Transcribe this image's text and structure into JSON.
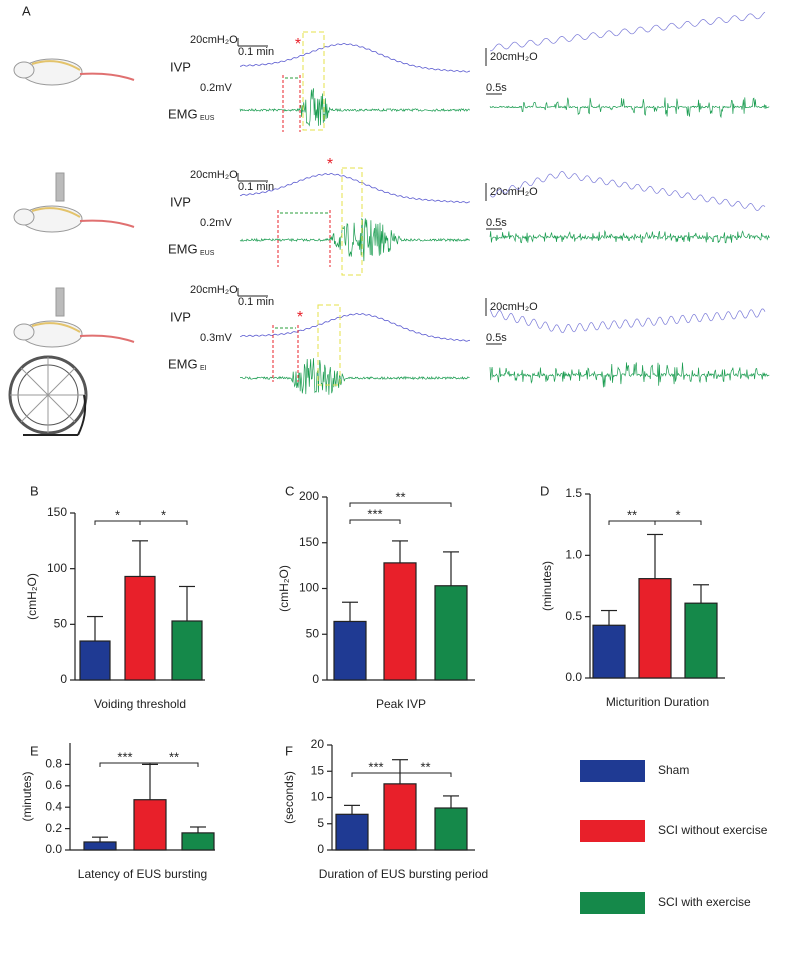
{
  "panel_a": {
    "label": "A",
    "rows": [
      {
        "ivp_scale": "20cmH₂O",
        "time_scale": "0.1 min",
        "ivp": "IVP",
        "emg_scale": "0.2mV",
        "emg": "EMG",
        "emg_sub": "EUS",
        "star": "*",
        "right_ivp_scale": "20cmH₂O",
        "right_time_scale": "0.5s"
      },
      {
        "ivp_scale": "20cmH₂O",
        "time_scale": "0.1 min",
        "ivp": "IVP",
        "emg_scale": "0.2mV",
        "emg": "EMG",
        "emg_sub": "EUS",
        "star": "*",
        "right_ivp_scale": "20cmH₂O",
        "right_time_scale": "0.5s"
      },
      {
        "ivp_scale": "20cmH₂O",
        "time_scale": "0.1 min",
        "ivp": "IVP",
        "emg_scale": "0.3mV",
        "emg": "EMG",
        "emg_sub": "EI",
        "star": "*",
        "right_ivp_scale": "20cmH₂O",
        "right_time_scale": "0.5s"
      }
    ]
  },
  "legend": [
    {
      "name": "Sham",
      "color": "#1f3a93"
    },
    {
      "name": "SCI without exercise",
      "color": "#e8202a"
    },
    {
      "name": "SCI with exercise",
      "color": "#15894a"
    }
  ],
  "chart_data": [
    {
      "type": "bar",
      "label": "B",
      "ylabel": "(cmH₂O)",
      "xlabel": "Voiding threshold",
      "values": [
        35,
        93,
        53
      ],
      "errors": [
        22,
        32,
        31
      ],
      "ylim": [
        0,
        150
      ],
      "yticks": [
        0,
        50,
        100,
        150
      ],
      "significance": [
        {
          "label": "*",
          "from": 0,
          "to": 1
        },
        {
          "label": "*",
          "from": 1,
          "to": 2
        }
      ]
    },
    {
      "type": "bar",
      "label": "C",
      "ylabel": "(cmH₂O)",
      "xlabel": "Peak IVP",
      "values": [
        64,
        128,
        103
      ],
      "errors": [
        21,
        24,
        37
      ],
      "ylim": [
        0,
        200
      ],
      "yticks": [
        0,
        50,
        100,
        150,
        200
      ],
      "significance": [
        {
          "label": "***",
          "from": 0,
          "to": 1
        },
        {
          "label": "**",
          "from": 0,
          "to": 2
        }
      ]
    },
    {
      "type": "bar",
      "label": "D",
      "ylabel": "(minutes)",
      "xlabel": "Micturition Duration",
      "values": [
        0.43,
        0.81,
        0.61
      ],
      "errors": [
        0.12,
        0.36,
        0.15
      ],
      "ylim": [
        0,
        1.5
      ],
      "yticks": [
        {
          "value": 0,
          "label": "0.0"
        },
        0.5,
        {
          "value": 1,
          "label": "1.0"
        },
        1.5
      ],
      "significance": [
        {
          "label": "**",
          "from": 0,
          "to": 1
        },
        {
          "label": "*",
          "from": 1,
          "to": 2
        }
      ]
    },
    {
      "type": "bar",
      "label": "E",
      "ylabel": "(minutes)",
      "xlabel": "Latency of EUS bursting",
      "values": [
        0.075,
        0.47,
        0.16
      ],
      "errors": [
        0.045,
        0.33,
        0.055
      ],
      "ylim": [
        0,
        1
      ],
      "yticks": [
        {
          "value": 0,
          "label": "0.0"
        },
        0.2,
        0.4,
        0.6,
        0.8
      ],
      "significance": [
        {
          "label": "***",
          "from": 0,
          "to": 1
        },
        {
          "label": "**",
          "from": 1,
          "to": 2
        }
      ]
    },
    {
      "type": "bar",
      "label": "F",
      "ylabel": "(seconds)",
      "xlabel": "Duration of EUS bursting period",
      "values": [
        6.8,
        12.6,
        8
      ],
      "errors": [
        1.7,
        4.6,
        2.3
      ],
      "ylim": [
        0,
        20
      ],
      "yticks": [
        0,
        5,
        10,
        15,
        20
      ],
      "significance": [
        {
          "label": "***",
          "from": 0,
          "to": 1
        },
        {
          "label": "**",
          "from": 1,
          "to": 2
        }
      ]
    }
  ]
}
